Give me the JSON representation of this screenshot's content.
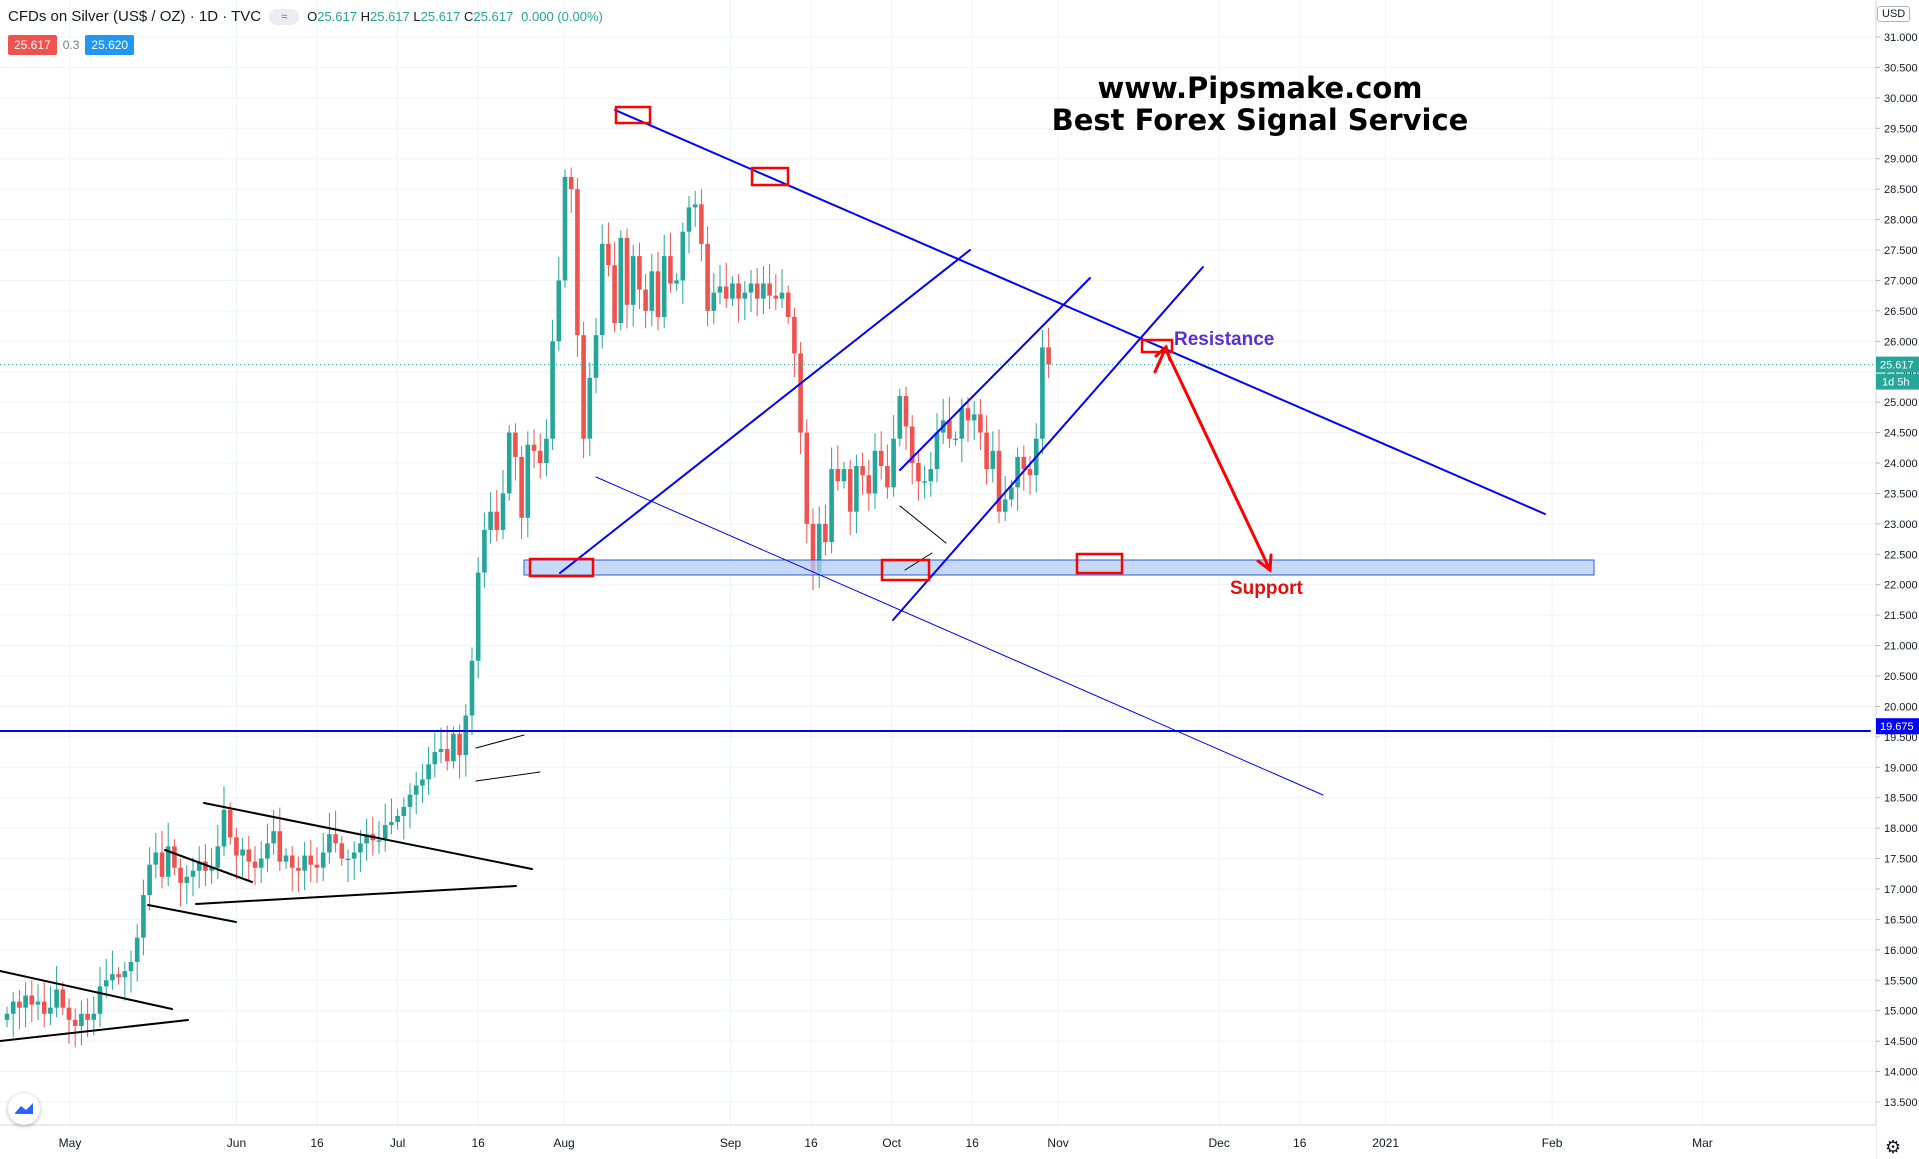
{
  "header": {
    "symbol": "CFDs on Silver (US$ / OZ) · 1D · TVC",
    "ohlc": {
      "o_label": "O",
      "o": "25.617",
      "h_label": "H",
      "h": "25.617",
      "l_label": "L",
      "l": "25.617",
      "c_label": "C",
      "c": "25.617"
    },
    "change": "0.000 (0.00%)",
    "eye_icon": "≈"
  },
  "prices": {
    "bid": "25.617",
    "spread": "0.3",
    "ask": "25.620"
  },
  "currency_badge": "USD",
  "watermark": {
    "line1": "www.Pipsmake.com",
    "line2": "Best Forex Signal Service"
  },
  "colors": {
    "up": "#26a69a",
    "down": "#ef5350",
    "trend": "#0000ff",
    "support_fill": "#b3cdf5",
    "annot_red": "#ff0000",
    "resistance_text": "#5a2dd8"
  },
  "chart_data": {
    "type": "candlestick",
    "title": "CFDs on Silver (US$ / OZ)",
    "interval": "1D",
    "source": "TVC",
    "y_axis": {
      "ylim": [
        13.0,
        31.3
      ],
      "ticks": [
        "13.500",
        "14.000",
        "14.500",
        "15.000",
        "15.500",
        "16.000",
        "16.500",
        "17.000",
        "17.500",
        "18.000",
        "18.500",
        "19.000",
        "19.500",
        "20.000",
        "20.500",
        "21.000",
        "21.500",
        "22.000",
        "22.500",
        "23.000",
        "23.500",
        "24.000",
        "24.500",
        "25.000",
        "25.500",
        "26.000",
        "26.500",
        "27.000",
        "27.500",
        "28.000",
        "28.500",
        "29.000",
        "29.500",
        "30.000",
        "30.500",
        "31.000"
      ]
    },
    "x_axis": {
      "labels": [
        {
          "label": "May",
          "day": 0
        },
        {
          "label": "Jun",
          "day": 31
        },
        {
          "label": "16",
          "day": 46
        },
        {
          "label": "Jul",
          "day": 61
        },
        {
          "label": "16",
          "day": 76
        },
        {
          "label": "Aug",
          "day": 92
        },
        {
          "label": "Sep",
          "day": 123
        },
        {
          "label": "16",
          "day": 138
        },
        {
          "label": "Oct",
          "day": 153
        },
        {
          "label": "16",
          "day": 168
        },
        {
          "label": "Nov",
          "day": 184
        },
        {
          "label": "Dec",
          "day": 214
        },
        {
          "label": "16",
          "day": 229
        },
        {
          "label": "2021",
          "day": 245
        },
        {
          "label": "Feb",
          "day": 276
        },
        {
          "label": "Mar",
          "day": 304
        }
      ]
    },
    "current_price": {
      "value": 25.617,
      "label": "25.617",
      "countdown": "1d 5h"
    },
    "horizontal_line": {
      "value": 19.675,
      "label": "19.675"
    },
    "candles_close": [
      14.95,
      15.15,
      15.05,
      15.25,
      15.1,
      15.15,
      14.95,
      15.05,
      15.35,
      15.05,
      14.85,
      14.75,
      14.95,
      14.85,
      14.95,
      15.4,
      15.5,
      15.6,
      15.55,
      15.65,
      15.8,
      16.2,
      16.9,
      17.4,
      17.6,
      17.2,
      17.7,
      17.35,
      17.1,
      17.2,
      17.3,
      17.45,
      17.3,
      17.35,
      17.7,
      18.3,
      17.85,
      17.55,
      17.65,
      17.45,
      17.35,
      17.5,
      17.75,
      17.95,
      17.45,
      17.55,
      17.35,
      17.3,
      17.55,
      17.4,
      17.35,
      17.6,
      17.9,
      17.75,
      17.5,
      17.5,
      17.6,
      17.75,
      17.9,
      17.8,
      17.8,
      18.05,
      18.1,
      18.2,
      18.35,
      18.55,
      18.7,
      18.8,
      19.05,
      19.25,
      19.3,
      19.1,
      19.55,
      19.2,
      19.85,
      20.75,
      22.2,
      22.9,
      23.2,
      22.9,
      23.5,
      24.5,
      24.1,
      23.1,
      24.3,
      24.2,
      24.0,
      24.4,
      26.0,
      27.0,
      28.7,
      28.5,
      26.1,
      24.4,
      25.4,
      26.1,
      27.6,
      27.25,
      26.3,
      27.7,
      26.6,
      27.4,
      26.85,
      26.5,
      27.15,
      26.4,
      27.4,
      26.95,
      27.0,
      27.8,
      28.2,
      28.25,
      27.6,
      26.5,
      26.8,
      26.9,
      26.7,
      26.95,
      26.7,
      26.8,
      26.95,
      26.7,
      26.95,
      26.75,
      26.7,
      26.8,
      26.4,
      25.8,
      24.5,
      23.0,
      22.2,
      23.0,
      22.7,
      23.9,
      23.7,
      23.9,
      23.2,
      23.95,
      23.8,
      23.5,
      24.2,
      23.95,
      23.6,
      24.4,
      25.1,
      24.6,
      24.0,
      23.7,
      23.7,
      23.9,
      24.5,
      24.7,
      24.4,
      24.4,
      24.9,
      24.7,
      24.8,
      24.5,
      23.9,
      24.2,
      23.2,
      23.4,
      23.6,
      24.1,
      23.9,
      23.8,
      24.4,
      25.9,
      25.617
    ]
  },
  "annotations": {
    "resistance_label": "Resistance",
    "support_label": "Support",
    "support_zone": [
      22.25,
      22.5
    ]
  }
}
